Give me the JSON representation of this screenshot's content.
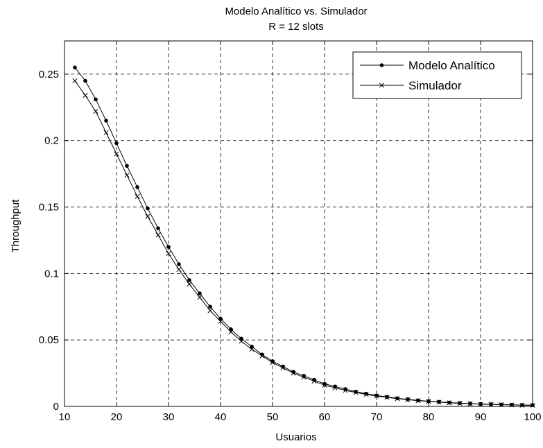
{
  "chart_data": {
    "type": "line",
    "title": "Modelo Analítico vs. Simulador",
    "subtitle": "R = 12 slots",
    "xlabel": "Usuarios",
    "ylabel": "Throughput",
    "xlim": [
      10,
      100
    ],
    "ylim": [
      0,
      0.275
    ],
    "xticks": [
      10,
      20,
      30,
      40,
      50,
      60,
      70,
      80,
      90,
      100
    ],
    "xtick_labels": [
      "10",
      "20",
      "30",
      "40",
      "50",
      "60",
      "70",
      "80",
      "90",
      "100"
    ],
    "yticks": [
      0,
      0.05,
      0.1,
      0.15,
      0.2,
      0.25
    ],
    "ytick_labels": [
      "0",
      "0.05",
      "0.1",
      "0.15",
      "0.2",
      "0.25"
    ],
    "grid": true,
    "legend_position": "top-right",
    "x": [
      12,
      14,
      16,
      18,
      20,
      22,
      24,
      26,
      28,
      30,
      32,
      34,
      36,
      38,
      40,
      42,
      44,
      46,
      48,
      50,
      52,
      54,
      56,
      58,
      60,
      62,
      64,
      66,
      68,
      70,
      72,
      74,
      76,
      78,
      80,
      82,
      84,
      86,
      88,
      90,
      92,
      94,
      96,
      98,
      100
    ],
    "series": [
      {
        "name": "Modelo Analítico",
        "marker": "dot",
        "color": "#000000",
        "values": [
          0.255,
          0.245,
          0.231,
          0.215,
          0.198,
          0.181,
          0.165,
          0.149,
          0.134,
          0.12,
          0.107,
          0.095,
          0.085,
          0.075,
          0.066,
          0.058,
          0.051,
          0.045,
          0.039,
          0.034,
          0.03,
          0.026,
          0.023,
          0.02,
          0.017,
          0.015,
          0.013,
          0.011,
          0.0095,
          0.0082,
          0.0071,
          0.0061,
          0.0053,
          0.0045,
          0.0039,
          0.0034,
          0.0029,
          0.0025,
          0.0021,
          0.0018,
          0.0016,
          0.0014,
          0.0012,
          0.001,
          0.0009
        ]
      },
      {
        "name": "Simulador",
        "marker": "x",
        "color": "#000000",
        "values": [
          0.245,
          0.234,
          0.222,
          0.206,
          0.19,
          0.174,
          0.158,
          0.143,
          0.129,
          0.115,
          0.103,
          0.092,
          0.082,
          0.072,
          0.064,
          0.056,
          0.049,
          0.043,
          0.038,
          0.033,
          0.029,
          0.025,
          0.022,
          0.019,
          0.016,
          0.014,
          0.012,
          0.0105,
          0.009,
          0.0078,
          0.0068,
          0.0058,
          0.005,
          0.0043,
          0.0037,
          0.0032,
          0.0027,
          0.0023,
          0.002,
          0.0017,
          0.0015,
          0.0013,
          0.0011,
          0.0009,
          0.0008
        ]
      }
    ]
  }
}
